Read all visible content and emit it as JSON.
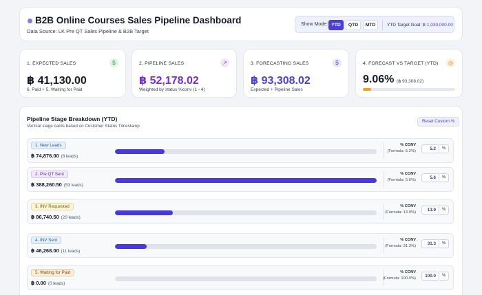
{
  "header": {
    "title": "B2B Online Courses Sales Pipeline Dashboard",
    "subtitle": "Data Source: LK Pre QT Sales Pipeline & B2B Target",
    "show_mode_label": "Show Mode:",
    "modes": [
      "YTD",
      "QTD",
      "MTD"
    ],
    "active_mode": "YTD",
    "target_goal_label": "YTD Target Goal:",
    "target_goal_value": "฿ 1,030,000.00"
  },
  "kpis": [
    {
      "label": "1. EXPECTED SALES",
      "value": "฿ 41,130.00",
      "sub": "6. Paid + 5. Waiting for Paid",
      "icon": "dollar-icon",
      "icon_glyph": "$",
      "value_color": "#161a26",
      "icon_bg": "#dff5e6",
      "icon_color": "#1e9e52"
    },
    {
      "label": "2. PIPELINE SALES",
      "value": "฿ 52,178.02",
      "sub": "Weighted by status %conv (1 - 4)",
      "icon": "trend-up-icon",
      "icon_glyph": "↗",
      "value_color": "#7a2bd6",
      "icon_bg": "#f3e6fb",
      "icon_color": "#9b3fd6"
    },
    {
      "label": "3. FORECASTING SALES",
      "value": "฿ 93,308.02",
      "sub": "Expected + Pipeline Sales",
      "icon": "coin-icon",
      "icon_glyph": "$",
      "value_color": "#4a3fd9",
      "icon_bg": "#e5e7fb",
      "icon_color": "#4a3fd9"
    },
    {
      "label": "4. FORECAST VS TARGET (YTD)",
      "value": "9.06%",
      "sub2": "(฿ 93,308.02)",
      "icon": "target-icon",
      "icon_glyph": "◎",
      "value_color": "#161a26",
      "icon_bg": "#fdf0dc",
      "icon_color": "#e08a10",
      "progress": 0.0906
    }
  ],
  "pipeline": {
    "title": "Pipeline Stage Breakdown (YTD)",
    "subtitle": "Vertical stage cards based on Customer Status Timestamp",
    "reset_label": "Reset Custom %",
    "conv_label": "% CONV",
    "pct_symbol": "%",
    "stages": [
      {
        "name": "1. New Leads",
        "amount": "฿ 74,876.00",
        "leads": "(8 leads)",
        "progress": 0.19,
        "formula": "(Formula: 5.2%)",
        "conv": "5.2",
        "badge_bg": "#e6f0fb",
        "badge_border": "#b9d3f0",
        "badge_color": "#2c5a94"
      },
      {
        "name": "2. Pre QT Sent",
        "amount": "฿ 388,260.50",
        "leads": "(53 leads)",
        "progress": 1.0,
        "formula": "(Formula: 5.6%)",
        "conv": "5.6",
        "badge_bg": "#f0e8fb",
        "badge_border": "#d6c4f0",
        "badge_color": "#5a3494"
      },
      {
        "name": "3. INV Requested",
        "amount": "฿ 86,740.50",
        "leads": "(20 leads)",
        "progress": 0.22,
        "formula": "(Formula: 13.9%)",
        "conv": "13.9",
        "badge_bg": "#fdf5d9",
        "badge_border": "#ecd98c",
        "badge_color": "#7a5a10"
      },
      {
        "name": "4. INV Sent",
        "amount": "฿ 46,268.00",
        "leads": "(11 leads)",
        "progress": 0.12,
        "formula": "(Formula: 31.3%)",
        "conv": "31.3",
        "badge_bg": "#e6f0fb",
        "badge_border": "#b9d3f0",
        "badge_color": "#2c5a94"
      },
      {
        "name": "5. Waiting for Paid",
        "amount": "฿ 0.00",
        "leads": "(0 leads)",
        "progress": 0.0,
        "formula": "(Formula: 100.0%)",
        "conv": "100.0",
        "badge_bg": "#fdeedd",
        "badge_border": "#f1c89a",
        "badge_color": "#8a4a10"
      }
    ]
  }
}
